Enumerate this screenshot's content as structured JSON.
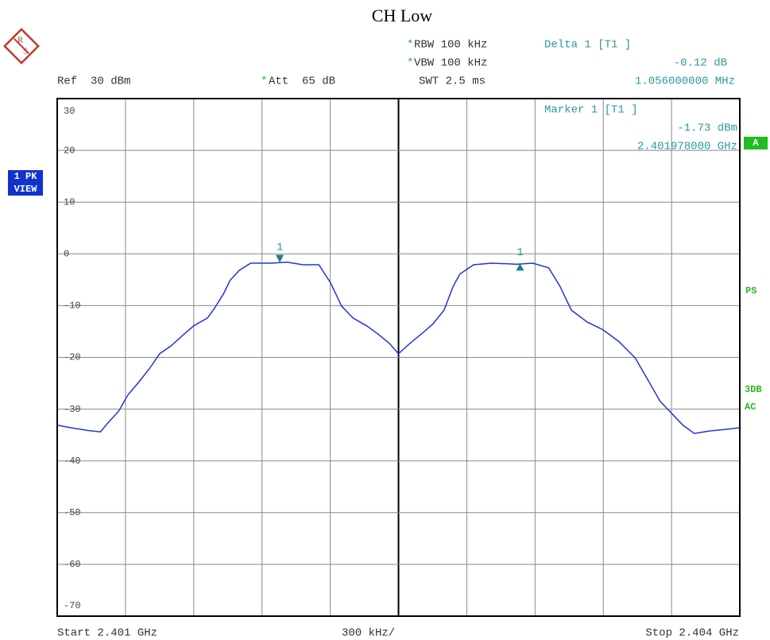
{
  "logo": [
    "R",
    "S"
  ],
  "star": "*",
  "header": {
    "ref": "Ref  30 dBm",
    "att": "Att  65 dB",
    "rbw": "RBW 100 kHz",
    "vbw": "VBW 100 kHz",
    "swt": "SWT 2.5 ms",
    "delta_title": "Delta 1 [T1 ]",
    "delta_level": "-0.12 dB",
    "delta_freq": "1.056000000 MHz"
  },
  "side": {
    "trace_box": [
      "1 PK",
      "VIEW"
    ],
    "a": "A",
    "ps": "PS",
    "flags": [
      "3DB",
      "AC"
    ]
  },
  "chart_data": {
    "type": "line",
    "title": "CH Low",
    "x_start": "Start 2.401 GHz",
    "x_div": "300 kHz/",
    "x_stop": "Stop 2.404 GHz",
    "marker_info": {
      "title": "Marker 1 [T1 ]",
      "level": "-1.73 dBm",
      "freq": "2.401978000 GHz"
    },
    "xlim": [
      2.401,
      2.404
    ],
    "xticks": [
      2.401,
      2.4013,
      2.4016,
      2.4019,
      2.4022,
      2.4025,
      2.4028,
      2.4031,
      2.4034,
      2.4037,
      2.404
    ],
    "ylim": [
      -70,
      30
    ],
    "yticks": [
      30,
      20,
      10,
      0,
      -10,
      -20,
      -30,
      -40,
      -50,
      -60,
      -70
    ],
    "grid": true,
    "series": [
      {
        "color": "#2233dd",
        "x": [
          2.401,
          2.40106,
          2.40113,
          2.40119,
          2.40122,
          2.40127,
          2.40131,
          2.40136,
          2.40141,
          2.40145,
          2.4015,
          2.40155,
          2.4016,
          2.40166,
          2.40169,
          2.40173,
          2.40176,
          2.4018,
          2.40185,
          2.40194,
          2.40201,
          2.40208,
          2.40215,
          2.4022,
          2.40225,
          2.4023,
          2.40236,
          2.40241,
          2.40246,
          2.4025,
          2.40255,
          2.4026,
          2.40265,
          2.4027,
          2.40274,
          2.40277,
          2.40283,
          2.40291,
          2.40302,
          2.40309,
          2.40316,
          2.40321,
          2.40326,
          2.40333,
          2.4034,
          2.40347,
          2.40354,
          2.40359,
          2.40365,
          2.4037,
          2.40375,
          2.4038,
          2.40387,
          2.40394,
          2.404
        ],
        "values": [
          -33.1,
          -33.6,
          -34.1,
          -34.4,
          -32.8,
          -30.4,
          -27.3,
          -24.7,
          -21.9,
          -19.3,
          -17.8,
          -15.8,
          -13.9,
          -12.4,
          -10.6,
          -7.8,
          -5.1,
          -3.2,
          -1.8,
          -1.8,
          -1.6,
          -2.1,
          -2.1,
          -5.5,
          -10.1,
          -12.4,
          -13.9,
          -15.5,
          -17.3,
          -19.3,
          -17.3,
          -15.5,
          -13.6,
          -10.9,
          -6.3,
          -3.9,
          -2.1,
          -1.8,
          -2.0,
          -1.8,
          -2.7,
          -6.3,
          -10.9,
          -13.2,
          -14.7,
          -17.0,
          -20.1,
          -23.9,
          -28.5,
          -30.8,
          -33.1,
          -34.7,
          -34.2,
          -33.9,
          -33.6
        ]
      }
    ],
    "markers": [
      {
        "label": "1",
        "x": 2.401978,
        "y": -1.73,
        "color": "#1f8080"
      },
      {
        "label": "1",
        "x": 2.403034,
        "y": -1.85,
        "color": "#1f8080"
      }
    ]
  }
}
